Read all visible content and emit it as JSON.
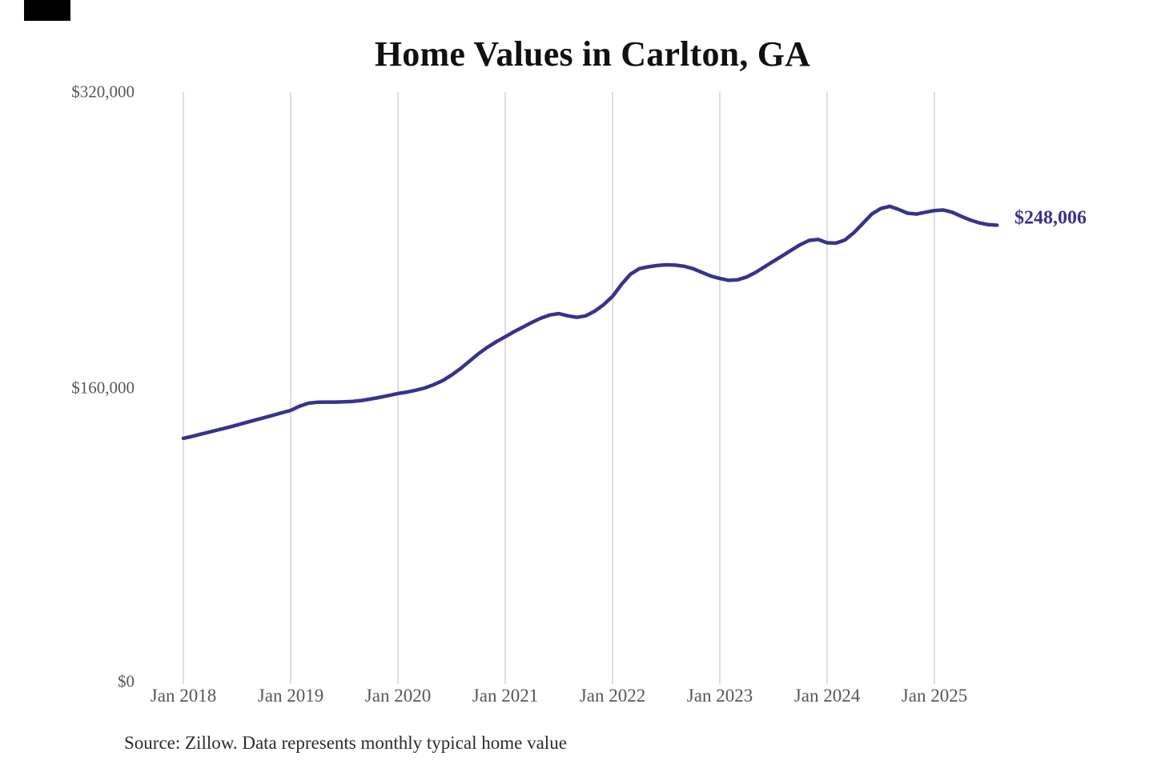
{
  "title": "Home Values in Carlton, GA",
  "source_note": "Source: Zillow. Data represents monthly typical home value",
  "end_label": "$248,006",
  "colors": {
    "line": "#37338c",
    "end_label": "#37338c",
    "gridline": "#cccccc",
    "axis_text": "#575757",
    "title_text": "#111111",
    "source_text": "#2b2b2b",
    "background": "#ffffff"
  },
  "chart_data": {
    "type": "line",
    "title": "Home Values in Carlton, GA",
    "xlabel": "",
    "ylabel": "",
    "ylim": [
      0,
      320000
    ],
    "y_tick_values": [
      0,
      160000,
      320000
    ],
    "y_tick_labels": [
      "$0",
      "$160,000",
      "$320,000"
    ],
    "x_tick_labels": [
      "Jan 2018",
      "Jan 2019",
      "Jan 2020",
      "Jan 2021",
      "Jan 2022",
      "Jan 2023",
      "Jan 2024",
      "Jan 2025"
    ],
    "grid": "vertical-only",
    "legend": "none",
    "frequency": "monthly",
    "start": "2018-01",
    "end": "2025-08",
    "end_value": 248006,
    "series": [
      {
        "name": "Typical home value",
        "values": [
          132800,
          133900,
          135100,
          136300,
          137500,
          138700,
          140000,
          141300,
          142600,
          143900,
          145200,
          146600,
          147900,
          150200,
          151800,
          152300,
          152400,
          152400,
          152500,
          152800,
          153300,
          154100,
          155000,
          156000,
          157000,
          157800,
          158800,
          160000,
          161800,
          164000,
          167000,
          170500,
          174500,
          178500,
          182000,
          185000,
          187700,
          190500,
          193000,
          195500,
          197800,
          199500,
          200200,
          199000,
          198200,
          199000,
          201500,
          205000,
          209500,
          216000,
          221500,
          224500,
          225500,
          226200,
          226600,
          226400,
          225800,
          224500,
          222500,
          220500,
          219200,
          218200,
          218500,
          220000,
          222500,
          225500,
          228500,
          231500,
          234500,
          237500,
          239800,
          240300,
          238500,
          238300,
          240000,
          244000,
          249000,
          254000,
          257000,
          258200,
          256500,
          254500,
          254000,
          255000,
          255900,
          256200,
          255000,
          252800,
          250800,
          249300,
          248300,
          248006
        ]
      }
    ]
  }
}
